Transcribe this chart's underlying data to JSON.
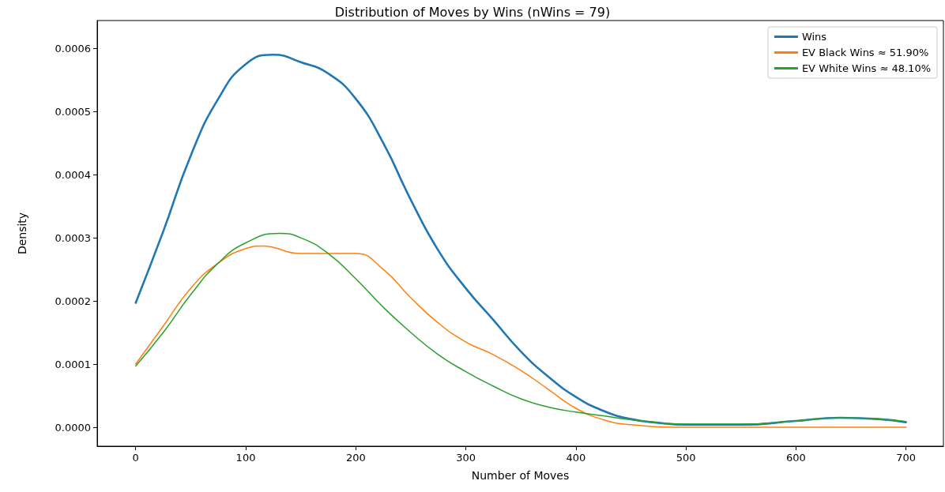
{
  "chart_data": {
    "type": "line",
    "title": "Distribution of Moves by Wins (nWins = 79)",
    "xlabel": "Number of Moves",
    "ylabel": "Density",
    "legend": "top right",
    "marker": "none",
    "line_style": "solid",
    "grid": false,
    "xlim": [
      -35,
      734
    ],
    "xticks": [
      0,
      100,
      200,
      300,
      400,
      500,
      600,
      700
    ],
    "ylim": [
      -3e-05,
      0.000644
    ],
    "yticks": [
      {
        "value": 0,
        "label": "0.0000"
      },
      {
        "value": 0.0001,
        "label": "0.0001"
      },
      {
        "value": 0.0002,
        "label": "0.0002"
      },
      {
        "value": 0.0003,
        "label": "0.0003"
      },
      {
        "value": 0.0004,
        "label": "0.0004"
      },
      {
        "value": 0.0005,
        "label": "0.0005"
      },
      {
        "value": 0.0006,
        "label": "0.0006"
      }
    ],
    "series": [
      {
        "name": "Wins",
        "color": "#1f77b4",
        "x": [
          0,
          25,
          50,
          75,
          100,
          125,
          150,
          175,
          200,
          225,
          250,
          275,
          300,
          325,
          350,
          375,
          400,
          425,
          450,
          475,
          500,
          550,
          600,
          640,
          675,
          700
        ],
        "values": [
          0.000197,
          0.00031,
          0.00043,
          0.00052,
          0.000575,
          0.00059,
          0.000578,
          0.00056,
          0.00052,
          0.00045,
          0.00036,
          0.00028,
          0.00022,
          0.00017,
          0.00012,
          8e-05,
          4.8e-05,
          2.6e-05,
          1.3e-05,
          7e-06,
          4e-06,
          4e-06,
          1e-05,
          1.5e-05,
          1.3e-05,
          8e-06
        ]
      },
      {
        "name": "EV Black Wins ≈ 51.90%",
        "color": "#ff7f0e",
        "x": [
          0,
          25,
          50,
          75,
          100,
          115,
          150,
          175,
          200,
          225,
          250,
          275,
          300,
          325,
          350,
          375,
          400,
          425,
          450,
          500,
          600,
          700
        ],
        "values": [
          0.0001,
          0.00016,
          0.00022,
          0.00026,
          0.000283,
          0.000287,
          0.000275,
          0.000275,
          0.000275,
          0.00025,
          0.000205,
          0.000165,
          0.000135,
          0.000115,
          9e-05,
          6e-05,
          3e-05,
          1.2e-05,
          4e-06,
          0,
          0,
          0
        ]
      },
      {
        "name": "EV White Wins ≈ 48.10%",
        "color": "#2ca02c",
        "x": [
          0,
          25,
          50,
          75,
          100,
          130,
          150,
          175,
          200,
          225,
          250,
          275,
          300,
          325,
          350,
          375,
          400,
          425,
          450,
          500,
          550,
          600,
          640,
          700
        ],
        "values": [
          9.7e-05,
          0.00015,
          0.00021,
          0.00026,
          0.000292,
          0.000307,
          0.0003,
          0.000275,
          0.000235,
          0.00019,
          0.00015,
          0.000115,
          8.8e-05,
          6.5e-05,
          4.5e-05,
          3.2e-05,
          2.4e-05,
          1.8e-05,
          1.2e-05,
          5e-06,
          5e-06,
          1e-05,
          1.5e-05,
          9e-06
        ]
      }
    ]
  }
}
